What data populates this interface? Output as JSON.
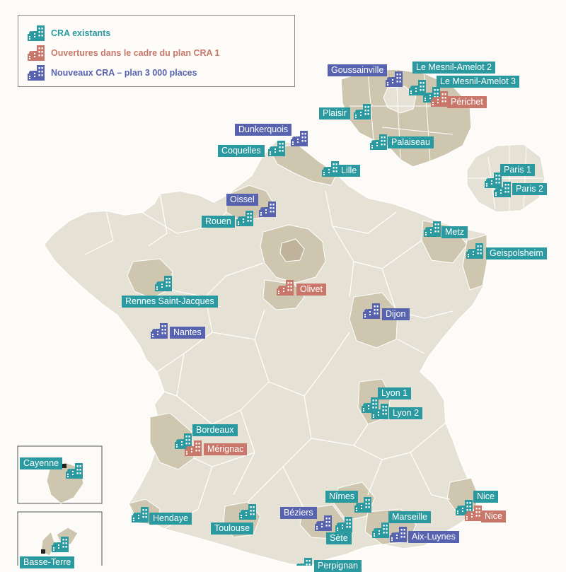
{
  "legend": {
    "existing": "CRA existants",
    "plan1": "Ouvertures dans le cadre du plan CRA 1",
    "new": "Nouveaux CRA – plan 3 000 places"
  },
  "colors": {
    "teal": "#2a9aa0",
    "salmon": "#c9776a",
    "blue": "#5863b0",
    "land": "#e6e1d5",
    "highlight": "#cfc6b0",
    "border": "#ffffff"
  },
  "icons": {
    "teal": "building-icon",
    "salmon": "building-icon",
    "blue": "building-icon"
  },
  "labels": [
    {
      "text": "Goussainville",
      "category": "new"
    },
    {
      "text": "Le Mesnil-Amelot 2",
      "category": "existing"
    },
    {
      "text": "Le Mesnil-Amelot 3",
      "category": "existing"
    },
    {
      "text": "Périchet",
      "category": "plan1"
    },
    {
      "text": "Plaisir",
      "category": "existing"
    },
    {
      "text": "Palaiseau",
      "category": "existing"
    },
    {
      "text": "Dunkerquois",
      "category": "new"
    },
    {
      "text": "Coquelles",
      "category": "existing"
    },
    {
      "text": "Lille",
      "category": "existing"
    },
    {
      "text": "Paris 1",
      "category": "existing"
    },
    {
      "text": "Paris 2",
      "category": "existing"
    },
    {
      "text": "Oissel",
      "category": "new"
    },
    {
      "text": "Rouen",
      "category": "existing"
    },
    {
      "text": "Metz",
      "category": "existing"
    },
    {
      "text": "Geispolsheim",
      "category": "existing"
    },
    {
      "text": "Olivet",
      "category": "plan1"
    },
    {
      "text": "Rennes Saint-Jacques",
      "category": "existing"
    },
    {
      "text": "Dijon",
      "category": "new"
    },
    {
      "text": "Nantes",
      "category": "new"
    },
    {
      "text": "Lyon 1",
      "category": "existing"
    },
    {
      "text": "Lyon 2",
      "category": "existing"
    },
    {
      "text": "Bordeaux",
      "category": "existing"
    },
    {
      "text": "Mérignac",
      "category": "plan1"
    },
    {
      "text": "Cayenne",
      "category": "existing"
    },
    {
      "text": "Nîmes",
      "category": "existing"
    },
    {
      "text": "Nice",
      "category": "existing"
    },
    {
      "text": "Nice",
      "category": "plan1"
    },
    {
      "text": "Béziers",
      "category": "new"
    },
    {
      "text": "Marseille",
      "category": "existing"
    },
    {
      "text": "Hendaye",
      "category": "existing"
    },
    {
      "text": "Toulouse",
      "category": "existing"
    },
    {
      "text": "Sète",
      "category": "existing"
    },
    {
      "text": "Aix-Luynes",
      "category": "new"
    },
    {
      "text": "Basse-Terre",
      "category": "existing"
    },
    {
      "text": "Perpignan",
      "category": "existing"
    }
  ]
}
